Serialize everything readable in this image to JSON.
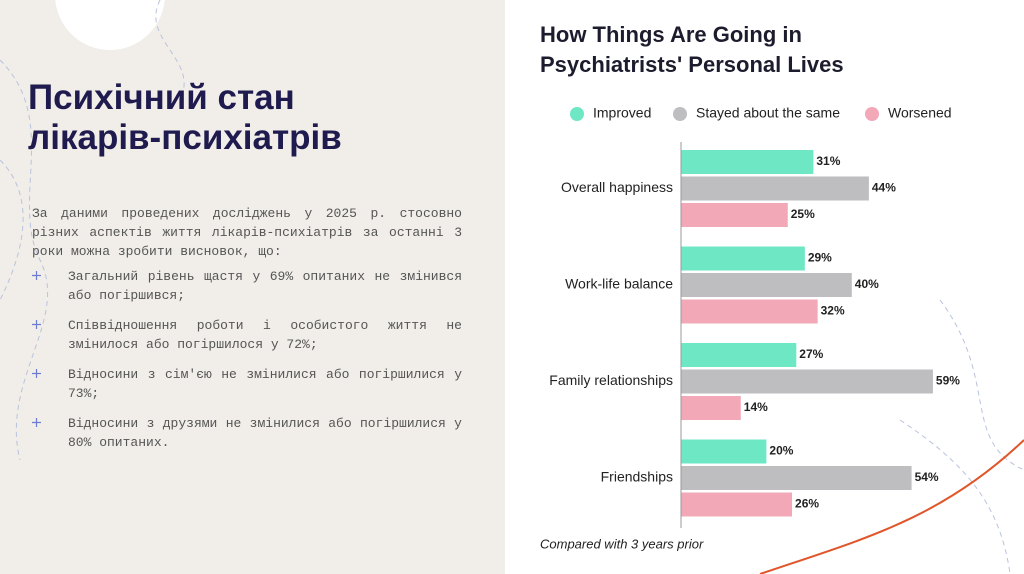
{
  "slide": {
    "title": "Психічний стан лікарів-психіатрів",
    "intro": "За даними проведених досліджень у 2025 р. стосовно різних аспектів життя лікарів-психіатрів за останні 3 роки можна зробити висновок, що:",
    "bullets": [
      "Загальний рівень щастя у 69% опитаних не змінився або погіршився;",
      "Співвідношення роботи і особистого життя не змінилося або погіршилося у 72%;",
      "Відносини з сім'єю не змінилися або погіршилися у 73%;",
      "Відносини з друзями не змінилися або погіршилися у 80% опитаних."
    ]
  },
  "chart_data": {
    "type": "bar",
    "orientation": "horizontal",
    "title": "How Things Are Going in Psychiatrists' Personal Lives",
    "categories": [
      "Overall happiness",
      "Work-life balance",
      "Family relationships",
      "Friendships"
    ],
    "series": [
      {
        "name": "Improved",
        "color": "#6ee7c5",
        "values": [
          31,
          29,
          27,
          20
        ],
        "value_labels": [
          "31%",
          "29%",
          "27%",
          "20%"
        ]
      },
      {
        "name": "Stayed about the same",
        "color": "#bebdc0",
        "values": [
          44,
          40,
          59,
          54
        ],
        "value_labels": [
          "44%",
          "40%",
          "59%",
          "54%"
        ]
      },
      {
        "name": "Worsened",
        "color": "#f2a8b7",
        "values": [
          25,
          32,
          14,
          26
        ],
        "value_labels": [
          "25%",
          "32%",
          "14%",
          "26%"
        ]
      }
    ],
    "note": "Compared with 3 years prior"
  }
}
